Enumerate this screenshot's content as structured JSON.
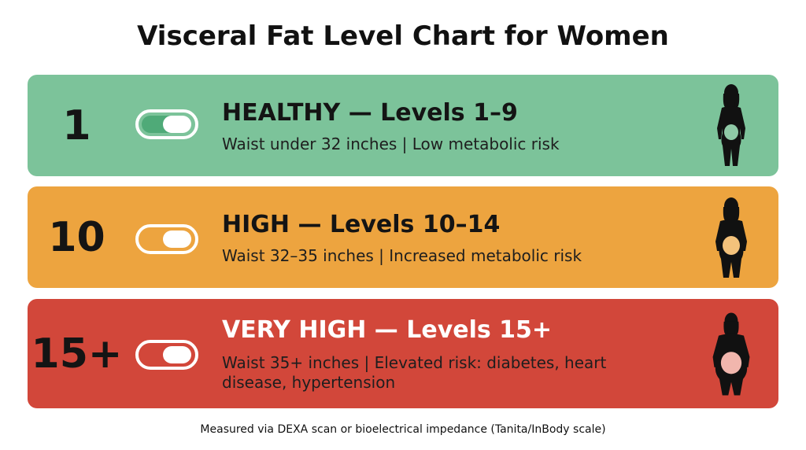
{
  "title": "Visceral Fat Level Chart for Women",
  "colors": {
    "healthy": "#7cc39a",
    "high": "#eda43f",
    "very_high": "#d2473a",
    "toggle_fill": "#4faa78"
  },
  "bands": [
    {
      "number": "1",
      "heading": "HEALTHY — Levels 1–9",
      "description": "Waist under 32 inches | Low metabolic risk",
      "icon": "woman-silhouette-icon"
    },
    {
      "number": "10",
      "heading": "HIGH — Levels 10–14",
      "description": "Waist 32–35 inches | Increased metabolic risk",
      "icon": "woman-silhouette-icon"
    },
    {
      "number": "15+",
      "heading": "VERY HIGH — Levels 15+",
      "description_line1": "Waist 35+ inches | Elevated risk: diabetes, heart",
      "description_line2": "disease, hypertension",
      "icon": "woman-silhouette-icon"
    }
  ],
  "footnote": "Measured via DEXA scan or bioelectrical impedance (Tanita/InBody scale)"
}
